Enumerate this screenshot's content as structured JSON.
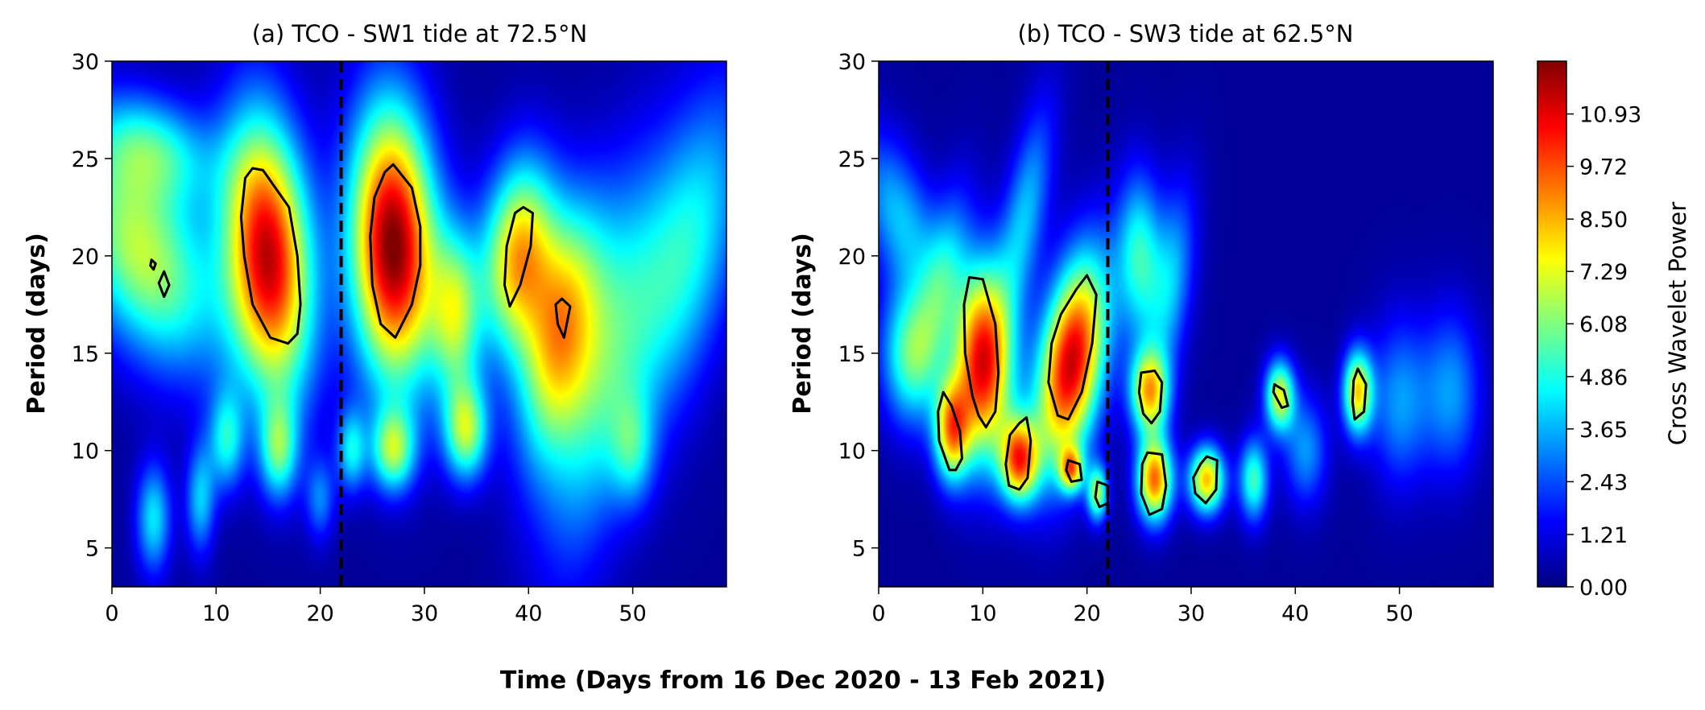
{
  "figure": {
    "xlabel": "Time (Days from 16 Dec 2020 - 13 Feb 2021)"
  },
  "colorbar": {
    "label": "Cross Wavelet Power",
    "range": [
      0,
      12.15
    ],
    "tick_values": [
      0.0,
      1.21,
      2.43,
      3.65,
      4.86,
      6.08,
      7.29,
      8.5,
      9.72,
      10.93
    ],
    "tick_labels": [
      "0.00",
      "1.21",
      "2.43",
      "3.65",
      "4.86",
      "6.08",
      "7.29",
      "8.50",
      "9.72",
      "10.93"
    ],
    "colormap": "jet",
    "colors": [
      "#00007f",
      "#0000ff",
      "#007fff",
      "#00ffff",
      "#7fff7f",
      "#ffff00",
      "#ff7f00",
      "#ff0000",
      "#7f0000"
    ]
  },
  "chart_data": [
    {
      "type": "heatmap",
      "panel": "a",
      "title": "(a)  TCO - SW1 tide at 72.5°N",
      "xlabel": "",
      "ylabel": "Period (days)",
      "xlim": [
        0,
        59
      ],
      "ylim": [
        3,
        30
      ],
      "xticks": [
        0,
        10,
        20,
        30,
        40,
        50
      ],
      "xtick_labels": [
        "0",
        "10",
        "20",
        "30",
        "40",
        "50"
      ],
      "yticks": [
        5,
        10,
        15,
        20,
        25,
        30
      ],
      "ytick_labels": [
        "5",
        "10",
        "15",
        "20",
        "25",
        "30"
      ],
      "background_power": 0.3,
      "event_line_day": 22,
      "power_blobs": [
        {
          "t": 3,
          "p": 20.0,
          "dt": 4.5,
          "dp": 4.0,
          "power": 6.5,
          "tilt": -0.55
        },
        {
          "t": 15,
          "p": 20.0,
          "dt": 2.9,
          "dp": 5.0,
          "power": 11.0,
          "tilt": -0.12
        },
        {
          "t": 27,
          "p": 20.5,
          "dt": 2.9,
          "dp": 5.0,
          "power": 12.0,
          "tilt": -0.05
        },
        {
          "t": 39,
          "p": 20.0,
          "dt": 2.5,
          "dp": 3.5,
          "power": 8.0,
          "tilt": 0.12
        },
        {
          "t": 43,
          "p": 16.0,
          "dt": 2.5,
          "dp": 4.5,
          "power": 7.0,
          "tilt": 0.25
        },
        {
          "t": 33,
          "p": 17.0,
          "dt": 1.7,
          "dp": 3.0,
          "power": 5.5,
          "tilt": 0.0
        },
        {
          "t": 34,
          "p": 11.0,
          "dt": 1.5,
          "dp": 1.8,
          "power": 6.0,
          "tilt": 0.0
        },
        {
          "t": 27,
          "p": 10.0,
          "dt": 1.5,
          "dp": 1.5,
          "power": 5.5,
          "tilt": 0.0
        },
        {
          "t": 16,
          "p": 10.0,
          "dt": 1.3,
          "dp": 1.8,
          "power": 4.6,
          "tilt": 0.0
        },
        {
          "t": 11,
          "p": 10.5,
          "dt": 1.2,
          "dp": 1.8,
          "power": 4.0,
          "tilt": 0.0
        },
        {
          "t": 23,
          "p": 10.0,
          "dt": 1.0,
          "dp": 1.5,
          "power": 3.8,
          "tilt": 0.0
        },
        {
          "t": 4,
          "p": 6.5,
          "dt": 1.2,
          "dp": 2.0,
          "power": 4.0,
          "tilt": 0.0
        },
        {
          "t": 8.5,
          "p": 7.5,
          "dt": 1.0,
          "dp": 2.0,
          "power": 3.6,
          "tilt": 0.0
        },
        {
          "t": 47,
          "p": 14.0,
          "dt": 3.0,
          "dp": 7.0,
          "power": 4.0,
          "tilt": 0.3
        },
        {
          "t": 55,
          "p": 20.0,
          "dt": 3.5,
          "dp": 6.0,
          "power": 4.5,
          "tilt": 0.4
        },
        {
          "t": 50,
          "p": 10.0,
          "dt": 1.5,
          "dp": 2.0,
          "power": 3.0,
          "tilt": 0.0
        },
        {
          "t": 4,
          "p": 25.5,
          "dt": 4.0,
          "dp": 2.0,
          "power": 4.0,
          "tilt": -0.5
        },
        {
          "t": 20,
          "p": 7.5,
          "dt": 1.0,
          "dp": 1.5,
          "power": 2.6,
          "tilt": 0.0
        }
      ],
      "significance_contours": [
        {
          "t": [
            14.5,
            17.0,
            17.8,
            18.1,
            17.8,
            16.9,
            15.2,
            13.5,
            12.7,
            12.4,
            12.8,
            13.5
          ],
          "p": [
            24.4,
            22.5,
            20.0,
            17.5,
            16.0,
            15.5,
            15.8,
            17.5,
            20.0,
            22.0,
            24.0,
            24.5
          ]
        },
        {
          "t": [
            27.0,
            28.8,
            29.6,
            29.6,
            28.8,
            27.2,
            25.8,
            25.0,
            24.8,
            25.2,
            26.2
          ],
          "p": [
            24.7,
            23.5,
            21.5,
            19.5,
            17.5,
            15.8,
            16.5,
            18.5,
            21.0,
            23.0,
            24.3
          ]
        },
        {
          "t": [
            39.5,
            40.4,
            40.2,
            39.2,
            38.2,
            37.7,
            37.9,
            38.7
          ],
          "p": [
            22.5,
            22.2,
            20.5,
            18.5,
            17.4,
            18.5,
            20.5,
            22.2
          ]
        },
        {
          "t": [
            43.2,
            44.0,
            43.4,
            42.8,
            42.6
          ],
          "p": [
            17.8,
            17.4,
            15.8,
            16.5,
            17.5
          ]
        },
        {
          "t": [
            5.0,
            5.5,
            5.0,
            4.5
          ],
          "p": [
            19.2,
            18.5,
            17.9,
            18.6
          ]
        },
        {
          "t": [
            3.8,
            4.2,
            4.0,
            3.7
          ],
          "p": [
            19.8,
            19.6,
            19.3,
            19.5
          ]
        }
      ]
    },
    {
      "type": "heatmap",
      "panel": "b",
      "title": "(b)  TCO - SW3 tide at 62.5°N",
      "xlabel": "",
      "ylabel": "Period (days)",
      "xlim": [
        0,
        59
      ],
      "ylim": [
        3,
        30
      ],
      "xticks": [
        0,
        10,
        20,
        30,
        40,
        50
      ],
      "xtick_labels": [
        "0",
        "10",
        "20",
        "30",
        "40",
        "50"
      ],
      "yticks": [
        5,
        10,
        15,
        20,
        25,
        30
      ],
      "ytick_labels": [
        "5",
        "10",
        "15",
        "20",
        "25",
        "30"
      ],
      "background_power": 0.3,
      "event_line_day": 22,
      "power_blobs": [
        {
          "t": 10,
          "p": 14.5,
          "dt": 2.0,
          "dp": 3.5,
          "power": 10.5,
          "tilt": 0.0
        },
        {
          "t": 18.5,
          "p": 14.5,
          "dt": 2.2,
          "dp": 3.8,
          "power": 11.0,
          "tilt": 0.25
        },
        {
          "t": 13.5,
          "p": 9.5,
          "dt": 1.3,
          "dp": 1.5,
          "power": 8.5,
          "tilt": 0.0
        },
        {
          "t": 7,
          "p": 11.0,
          "dt": 1.2,
          "dp": 1.8,
          "power": 7.5,
          "tilt": 0.0
        },
        {
          "t": 26.5,
          "p": 8.5,
          "dt": 1.2,
          "dp": 1.5,
          "power": 9.0,
          "tilt": 0.0
        },
        {
          "t": 31.5,
          "p": 8.5,
          "dt": 1.2,
          "dp": 1.2,
          "power": 8.0,
          "tilt": 0.0
        },
        {
          "t": 26,
          "p": 13.0,
          "dt": 1.3,
          "dp": 1.5,
          "power": 7.5,
          "tilt": 0.0
        },
        {
          "t": 46,
          "p": 13.0,
          "dt": 1.0,
          "dp": 1.5,
          "power": 7.5,
          "tilt": 0.0
        },
        {
          "t": 38.5,
          "p": 12.8,
          "dt": 1.0,
          "dp": 1.3,
          "power": 6.8,
          "tilt": 0.0
        },
        {
          "t": 18.5,
          "p": 9.0,
          "dt": 0.8,
          "dp": 0.8,
          "power": 6.5,
          "tilt": 0.0
        },
        {
          "t": 21,
          "p": 7.8,
          "dt": 0.7,
          "dp": 1.0,
          "power": 6.0,
          "tilt": 0.0
        },
        {
          "t": 3,
          "p": 15.0,
          "dt": 2.0,
          "dp": 2.5,
          "power": 5.0,
          "tilt": 0.0
        },
        {
          "t": 36,
          "p": 8.5,
          "dt": 1.0,
          "dp": 1.5,
          "power": 5.0,
          "tilt": 0.0
        },
        {
          "t": 25,
          "p": 20.0,
          "dt": 1.5,
          "dp": 3.0,
          "power": 4.5,
          "tilt": 0.0
        },
        {
          "t": 28,
          "p": 18.5,
          "dt": 1.5,
          "dp": 3.5,
          "power": 3.5,
          "tilt": 0.2
        },
        {
          "t": 50,
          "p": 12.5,
          "dt": 2.0,
          "dp": 3.0,
          "power": 3.0,
          "tilt": 0.0
        },
        {
          "t": 55,
          "p": 13.0,
          "dt": 2.0,
          "dp": 3.0,
          "power": 3.0,
          "tilt": 0.0
        },
        {
          "t": 41,
          "p": 10.0,
          "dt": 1.5,
          "dp": 2.0,
          "power": 3.0,
          "tilt": 0.0
        },
        {
          "t": 2,
          "p": 22.0,
          "dt": 2.5,
          "dp": 3.0,
          "power": 3.5,
          "tilt": -0.5
        },
        {
          "t": 14,
          "p": 22.0,
          "dt": 1.5,
          "dp": 4.0,
          "power": 3.5,
          "tilt": 0.3
        },
        {
          "t": 6,
          "p": 18.5,
          "dt": 1.5,
          "dp": 3.5,
          "power": 3.0,
          "tilt": 0.3
        }
      ],
      "significance_contours": [
        {
          "t": [
            10.0,
            11.2,
            11.5,
            11.2,
            10.3,
            9.6,
            9.0,
            8.3,
            8.2,
            8.7
          ],
          "p": [
            18.8,
            16.5,
            14.0,
            12.0,
            11.2,
            11.8,
            12.8,
            15.0,
            17.5,
            18.9
          ]
        },
        {
          "t": [
            20.0,
            20.9,
            20.5,
            19.5,
            18.2,
            17.2,
            16.3,
            16.6,
            17.5,
            19.0
          ],
          "p": [
            19.0,
            18.0,
            15.5,
            13.0,
            11.6,
            11.8,
            13.5,
            15.5,
            17.0,
            18.3
          ]
        },
        {
          "t": [
            6.2,
            7.0,
            7.8,
            8.0,
            7.4,
            6.8,
            5.8,
            5.7
          ],
          "p": [
            13.0,
            12.3,
            11.0,
            9.6,
            9.0,
            9.0,
            10.5,
            12.0
          ]
        },
        {
          "t": [
            14.2,
            14.6,
            14.3,
            13.5,
            12.5,
            12.2,
            12.6,
            13.5
          ],
          "p": [
            11.7,
            10.5,
            8.6,
            8.0,
            8.2,
            9.3,
            10.8,
            11.4
          ]
        },
        {
          "t": [
            18.2,
            19.3,
            19.5,
            18.5,
            18.0
          ],
          "p": [
            9.5,
            9.3,
            8.5,
            8.4,
            9.0
          ]
        },
        {
          "t": [
            21.0,
            22.0,
            22.0,
            21.2,
            20.8
          ],
          "p": [
            8.4,
            8.2,
            7.3,
            7.1,
            7.6
          ]
        },
        {
          "t": [
            25.2,
            26.5,
            27.2,
            27.0,
            26.2,
            25.4,
            25.0
          ],
          "p": [
            14.0,
            14.1,
            13.5,
            12.0,
            11.4,
            11.9,
            13.0
          ]
        },
        {
          "t": [
            25.8,
            27.2,
            27.6,
            27.2,
            26.0,
            25.2,
            25.3
          ],
          "p": [
            9.9,
            9.8,
            8.2,
            7.0,
            6.7,
            7.8,
            9.3
          ]
        },
        {
          "t": [
            31.5,
            32.5,
            32.4,
            31.4,
            30.4,
            30.2,
            30.9
          ],
          "p": [
            9.7,
            9.5,
            8.0,
            7.3,
            7.8,
            8.6,
            9.3
          ]
        },
        {
          "t": [
            38.0,
            38.9,
            39.3,
            38.7,
            38.3,
            37.9
          ],
          "p": [
            13.4,
            13.1,
            12.3,
            12.2,
            12.6,
            13.0
          ]
        },
        {
          "t": [
            46.0,
            46.8,
            46.6,
            45.7,
            45.5,
            45.6
          ],
          "p": [
            14.2,
            13.4,
            12.0,
            11.6,
            12.5,
            13.6
          ]
        }
      ]
    }
  ]
}
